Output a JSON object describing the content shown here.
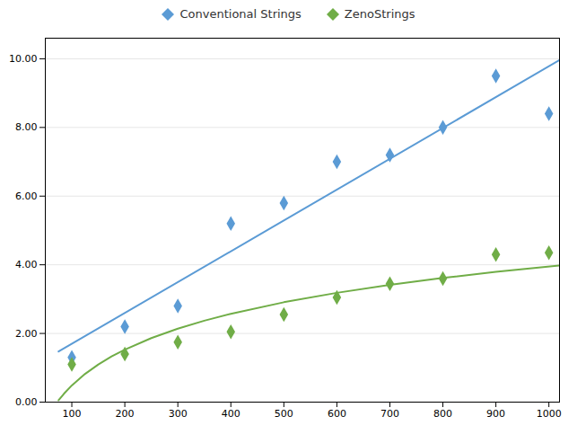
{
  "chart_data": {
    "type": "scatter",
    "x": [
      100,
      200,
      300,
      400,
      500,
      600,
      700,
      800,
      900,
      1000
    ],
    "series": [
      {
        "name": "Conventional Strings",
        "color": "#5b9bd5",
        "marker": "diamond",
        "values": [
          1.3,
          2.2,
          2.8,
          5.2,
          5.8,
          7.0,
          7.2,
          8.0,
          9.5,
          8.4
        ],
        "trend": {
          "x": [
            75,
            1020
          ],
          "values": [
            1.4736,
            9.9615
          ]
        }
      },
      {
        "name": "ZenoStrings",
        "color": "#70ad47",
        "marker": "diamond",
        "values": [
          1.1,
          1.4,
          1.75,
          2.05,
          2.55,
          3.05,
          3.45,
          3.6,
          4.3,
          4.35
        ],
        "trend": {
          "x": [
            75,
            85,
            100,
            125,
            150,
            175,
            200,
            250,
            300,
            350,
            400,
            500,
            600,
            700,
            800,
            900,
            1020
          ],
          "values": [
            0.0533,
            0.2417,
            0.4864,
            0.8223,
            1.0967,
            1.3288,
            1.5298,
            1.8656,
            2.1401,
            2.3721,
            2.5731,
            2.909,
            3.1835,
            3.4155,
            3.6165,
            3.7938,
            3.9822
          ]
        }
      }
    ],
    "xlim": [
      50,
      1020
    ],
    "ylim": [
      0.0,
      10.6
    ],
    "xticks": [
      100,
      200,
      300,
      400,
      500,
      600,
      700,
      800,
      900,
      1000
    ],
    "yticks": [
      {
        "value": 0.0,
        "label": "0.00"
      },
      {
        "value": 2.0,
        "label": "2.00"
      },
      {
        "value": 4.0,
        "label": "4.00"
      },
      {
        "value": 6.0,
        "label": "6.00"
      },
      {
        "value": 8.0,
        "label": "8.00"
      },
      {
        "value": 10.0,
        "label": "10.00"
      }
    ],
    "grid": "y",
    "legend": "top"
  }
}
